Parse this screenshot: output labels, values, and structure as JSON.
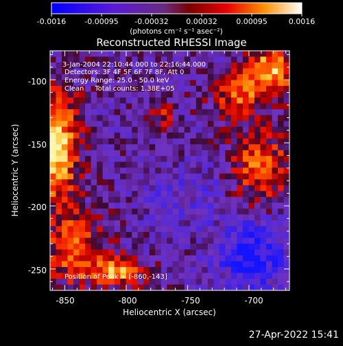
{
  "colorbar": {
    "tick_labels": [
      "-0.0016",
      "-0.00095",
      "-0.00032",
      "0.00032",
      "0.00095",
      "0.0016"
    ],
    "unit_label": "(photons cm⁻² s⁻¹ asec⁻²)",
    "range": [
      -0.0016,
      0.0016
    ]
  },
  "image": {
    "title": "Reconstructed RHESSI Image",
    "info_lines": [
      "3-Jan-2004 22:10:44.000 to 22:16:44.000",
      "Detectors: 3F 4F 5F 6F 7F 8F, Att 0",
      "Energy Range: 25.0 - 50.0 keV",
      "Clean     Total counts: 1.38E+05"
    ],
    "peak_text": "Position of Peak = [-860,-143]",
    "xlabel": "Heliocentric X (arcsec)",
    "ylabel": "Heliocentric Y (arcsec)",
    "x_ticks": [
      "-850",
      "-800",
      "-750",
      "-700"
    ],
    "y_ticks": [
      "-100",
      "-150",
      "-200",
      "-250"
    ]
  },
  "footer": {
    "timestamp": "27-Apr-2022 15:41"
  },
  "chart_data": {
    "type": "heatmap",
    "title": "Reconstructed RHESSI Image",
    "xlabel": "Heliocentric X (arcsec)",
    "ylabel": "Heliocentric Y (arcsec)",
    "xlim": [
      -862,
      -667
    ],
    "ylim": [
      -267,
      -77
    ],
    "x_ticks": [
      -850,
      -800,
      -750,
      -700
    ],
    "y_ticks": [
      -100,
      -150,
      -200,
      -250
    ],
    "colorscale": [
      "#0000ff",
      "#1a1aff",
      "#4b1ad0",
      "#7a2fc4",
      "#6a2aa0",
      "#3a0a2a",
      "#c80000",
      "#ff5000",
      "#ffa000",
      "#ffe060",
      "#ffffff"
    ],
    "peak_position": [
      -860,
      -143
    ]
  }
}
